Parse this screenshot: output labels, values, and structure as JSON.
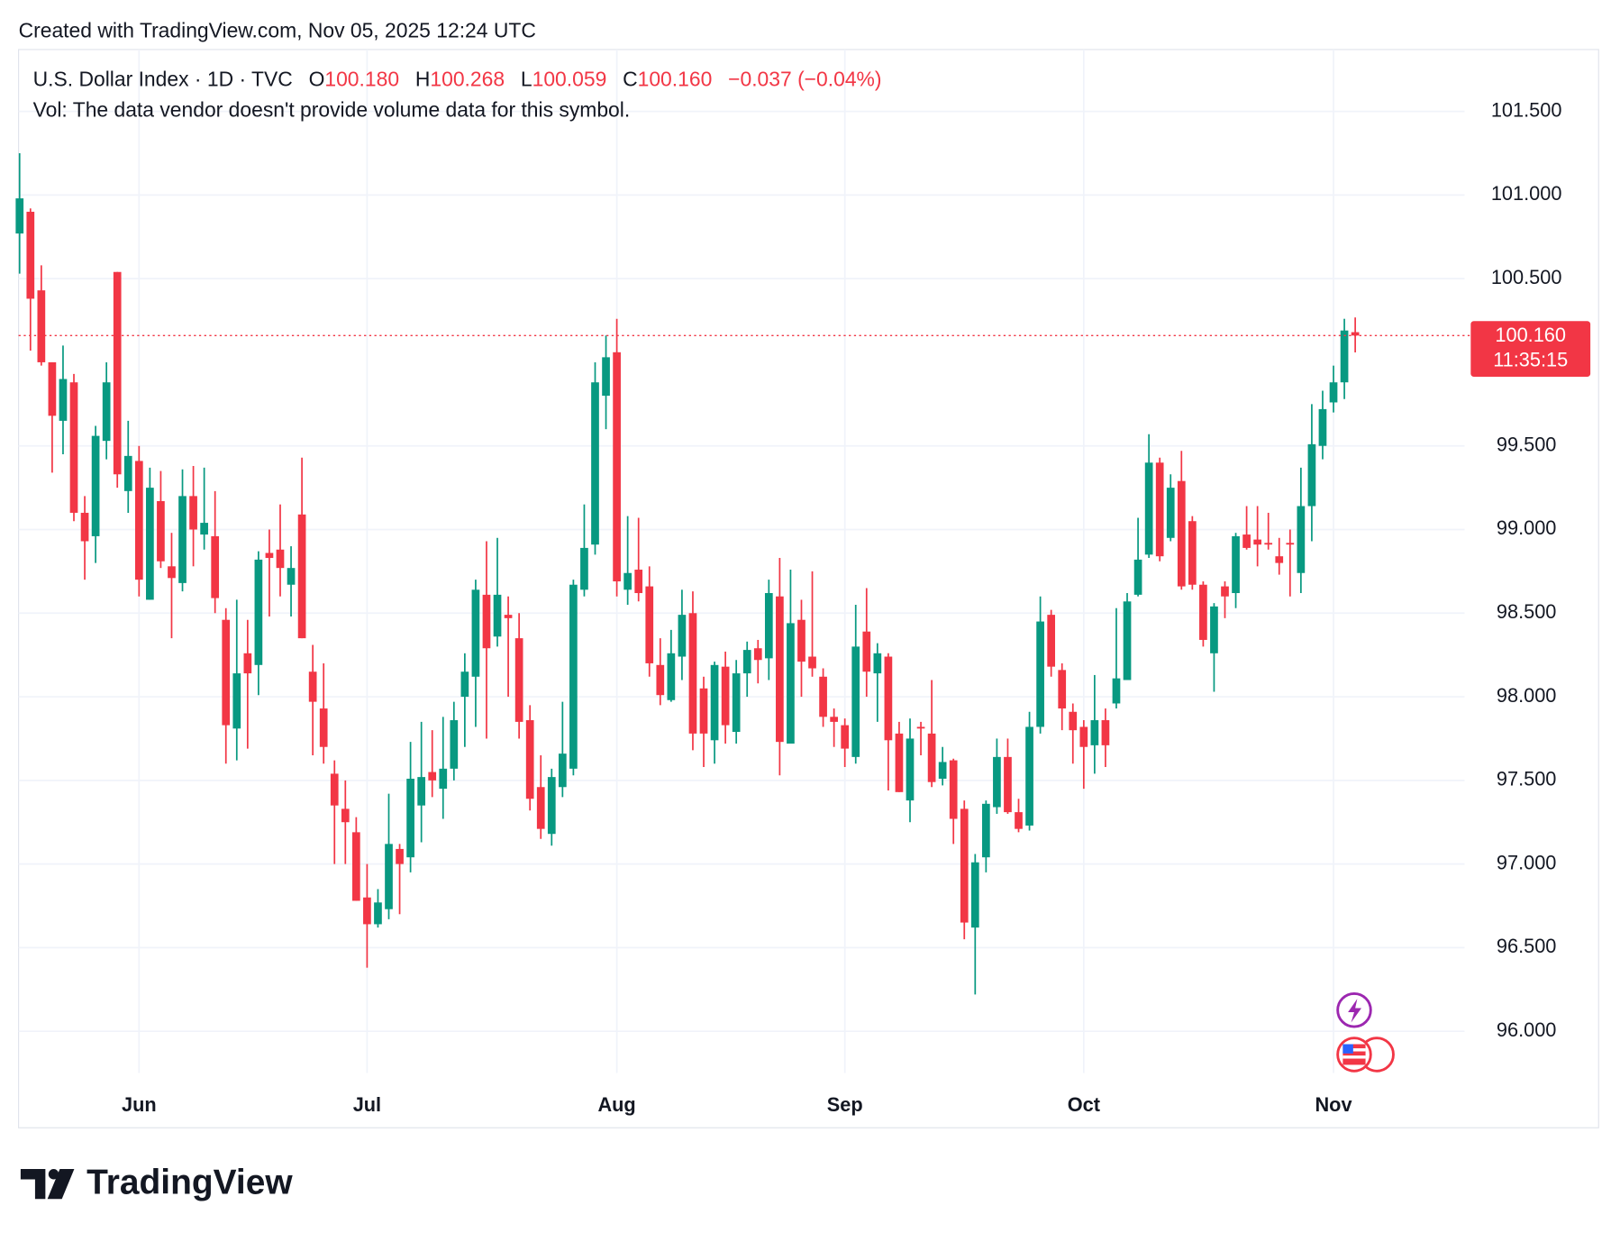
{
  "header": {
    "credit": "Created with TradingView.com, Nov 05, 2025 12:24 UTC",
    "ohlc": [
      {
        "label": "O",
        "value": "100.180"
      },
      {
        "label": "H",
        "value": "100.268"
      },
      {
        "label": "L",
        "value": "100.059"
      },
      {
        "label": "C",
        "value": "100.160"
      }
    ],
    "change": "−0.037 (−0.04%)",
    "volume_note": "Vol: The data vendor doesn't provide volume data for this symbol."
  },
  "price_label": {
    "price": "100.160",
    "countdown": "11:35:15"
  },
  "footer": {
    "brand": "TradingView"
  },
  "chart_data": {
    "type": "candlestick",
    "title": "U.S. Dollar Index · 1D · TVC",
    "up_color": "#089981",
    "down_color": "#f23645",
    "grid": true,
    "ylim": [
      95.75,
      101.87
    ],
    "yticks": [
      {
        "value": 96,
        "label": "96.000"
      },
      {
        "value": 96.5,
        "label": "96.500"
      },
      {
        "value": 97,
        "label": "97.000"
      },
      {
        "value": 97.5,
        "label": "97.500"
      },
      {
        "value": 98,
        "label": "98.000"
      },
      {
        "value": 98.5,
        "label": "98.500"
      },
      {
        "value": 99,
        "label": "99.000"
      },
      {
        "value": 99.5,
        "label": "99.500"
      },
      {
        "value": 100.5,
        "label": "100.500"
      },
      {
        "value": 101,
        "label": "101.000"
      },
      {
        "value": 101.5,
        "label": "101.500"
      }
    ],
    "categories": [
      null,
      null,
      null,
      null,
      null,
      null,
      null,
      null,
      null,
      null,
      null,
      "Jun",
      null,
      null,
      null,
      null,
      null,
      null,
      null,
      null,
      null,
      null,
      null,
      null,
      null,
      null,
      null,
      null,
      null,
      null,
      null,
      null,
      "Jul",
      null,
      null,
      null,
      null,
      null,
      null,
      null,
      null,
      null,
      null,
      null,
      null,
      null,
      null,
      null,
      null,
      null,
      null,
      null,
      null,
      null,
      null,
      "Aug",
      null,
      null,
      null,
      null,
      null,
      null,
      null,
      null,
      null,
      null,
      null,
      null,
      null,
      null,
      null,
      null,
      null,
      null,
      null,
      null,
      "Sep",
      null,
      null,
      null,
      null,
      null,
      null,
      null,
      null,
      null,
      null,
      null,
      null,
      null,
      null,
      null,
      null,
      null,
      null,
      null,
      null,
      null,
      "Oct",
      null,
      null,
      null,
      null,
      null,
      null,
      null,
      null,
      null,
      null,
      null,
      null,
      null,
      null,
      null,
      null,
      null,
      null,
      null,
      null,
      null,
      null,
      "Nov",
      null,
      null
    ],
    "open": [
      100.77,
      100.9,
      100.43,
      100.0,
      99.65,
      99.88,
      99.1,
      98.96,
      99.53,
      100.54,
      99.23,
      99.41,
      98.58,
      99.17,
      98.78,
      98.68,
      99.2,
      98.97,
      98.96,
      98.46,
      97.81,
      98.26,
      98.19,
      98.86,
      98.88,
      98.67,
      99.09,
      98.15,
      97.93,
      97.54,
      97.33,
      97.19,
      96.8,
      96.64,
      96.73,
      97.09,
      97.04,
      97.35,
      97.55,
      97.45,
      97.57,
      98.0,
      98.12,
      98.61,
      98.36,
      98.49,
      98.35,
      97.86,
      97.46,
      97.18,
      97.46,
      97.57,
      98.64,
      98.91,
      99.8,
      100.06,
      98.64,
      98.76,
      98.66,
      98.19,
      97.98,
      98.24,
      98.5,
      98.05,
      97.74,
      98.18,
      97.79,
      98.14,
      98.29,
      98.23,
      98.6,
      97.72,
      98.46,
      98.24,
      98.12,
      97.88,
      97.83,
      97.64,
      98.39,
      98.14,
      98.24,
      97.78,
      97.38,
      97.82,
      97.78,
      97.51,
      97.62,
      97.33,
      96.62,
      97.04,
      97.34,
      97.64,
      97.31,
      97.23,
      97.82,
      98.49,
      98.16,
      97.91,
      97.82,
      97.71,
      97.86,
      97.96,
      98.1,
      98.61,
      98.85,
      99.4,
      98.95,
      99.29,
      99.05,
      98.67,
      98.26,
      98.66,
      98.62,
      98.97,
      98.94,
      98.92,
      98.84,
      98.92,
      98.74,
      99.14,
      99.5,
      99.76,
      99.88,
      100.18
    ],
    "high": [
      101.25,
      100.92,
      100.58,
      100.0,
      100.1,
      99.93,
      99.2,
      99.62,
      100.0,
      100.54,
      99.65,
      99.5,
      99.37,
      99.35,
      98.98,
      99.36,
      99.38,
      99.37,
      99.23,
      98.53,
      98.58,
      98.46,
      98.87,
      99.0,
      99.15,
      98.9,
      99.43,
      98.31,
      98.2,
      97.62,
      97.5,
      97.28,
      97.0,
      96.85,
      97.42,
      97.12,
      97.73,
      97.85,
      97.8,
      97.88,
      97.97,
      98.26,
      98.7,
      98.93,
      98.95,
      98.6,
      98.5,
      97.95,
      97.65,
      97.57,
      97.97,
      98.7,
      99.15,
      100.0,
      100.16,
      100.26,
      99.08,
      99.07,
      98.78,
      98.35,
      98.4,
      98.64,
      98.63,
      98.12,
      98.21,
      98.27,
      98.22,
      98.33,
      98.34,
      98.7,
      98.83,
      98.76,
      98.58,
      98.75,
      98.17,
      97.93,
      97.87,
      98.55,
      98.65,
      98.32,
      98.26,
      97.85,
      97.87,
      97.85,
      98.1,
      97.7,
      97.63,
      97.38,
      97.06,
      97.38,
      97.75,
      97.75,
      97.39,
      97.91,
      98.6,
      98.52,
      98.2,
      97.96,
      97.86,
      98.13,
      97.93,
      98.53,
      98.62,
      99.07,
      99.57,
      99.43,
      99.33,
      99.47,
      99.08,
      98.69,
      98.56,
      98.69,
      98.98,
      99.14,
      99.14,
      99.1,
      98.95,
      99.0,
      99.37,
      99.75,
      99.83,
      99.98,
      100.26,
      100.268
    ],
    "low": [
      100.53,
      100.07,
      99.98,
      99.34,
      99.45,
      99.05,
      98.7,
      98.8,
      99.42,
      99.25,
      99.1,
      98.6,
      98.58,
      98.77,
      98.35,
      98.63,
      98.78,
      98.88,
      98.5,
      97.6,
      97.62,
      97.69,
      98.01,
      98.48,
      98.6,
      98.48,
      98.35,
      97.65,
      97.6,
      97.0,
      97.0,
      96.78,
      96.38,
      96.62,
      96.67,
      96.7,
      96.95,
      97.13,
      97.4,
      97.27,
      97.5,
      97.7,
      97.82,
      97.75,
      98.3,
      98.0,
      97.75,
      97.32,
      97.15,
      97.11,
      97.4,
      97.53,
      98.6,
      98.85,
      99.6,
      98.6,
      98.55,
      98.57,
      98.12,
      97.95,
      97.97,
      98.1,
      97.68,
      97.58,
      97.6,
      97.72,
      97.72,
      98.0,
      98.08,
      98.1,
      97.53,
      97.72,
      98.0,
      98.12,
      97.82,
      97.7,
      97.58,
      97.6,
      98.0,
      97.85,
      97.44,
      97.43,
      97.25,
      97.65,
      97.46,
      97.47,
      97.12,
      96.55,
      96.22,
      96.95,
      97.3,
      97.3,
      97.19,
      97.2,
      97.78,
      98.12,
      97.8,
      97.6,
      97.45,
      97.54,
      97.58,
      97.93,
      98.1,
      98.6,
      98.83,
      98.81,
      98.93,
      98.64,
      98.64,
      98.3,
      98.03,
      98.47,
      98.53,
      98.88,
      98.78,
      98.88,
      98.73,
      98.6,
      98.62,
      98.93,
      99.42,
      99.7,
      99.78,
      100.059
    ],
    "close": [
      100.98,
      100.38,
      100.0,
      99.68,
      99.9,
      99.1,
      98.93,
      99.56,
      99.88,
      99.33,
      99.44,
      98.7,
      99.25,
      98.81,
      98.71,
      99.2,
      99.0,
      99.04,
      98.59,
      97.83,
      98.14,
      98.14,
      98.82,
      98.83,
      98.77,
      98.77,
      98.35,
      97.97,
      97.7,
      97.35,
      97.25,
      96.78,
      96.64,
      96.77,
      97.12,
      97.0,
      97.51,
      97.52,
      97.5,
      97.57,
      97.86,
      98.15,
      98.64,
      98.29,
      98.61,
      98.47,
      97.85,
      97.39,
      97.21,
      97.52,
      97.66,
      98.67,
      98.89,
      99.88,
      100.03,
      98.69,
      98.74,
      98.62,
      98.2,
      98.01,
      98.26,
      98.49,
      97.78,
      97.78,
      98.19,
      97.83,
      98.14,
      98.28,
      98.22,
      98.62,
      97.73,
      98.44,
      98.21,
      98.17,
      97.88,
      97.85,
      97.69,
      98.3,
      98.15,
      98.26,
      97.74,
      97.43,
      97.75,
      97.81,
      97.49,
      97.61,
      97.27,
      96.65,
      97.01,
      97.36,
      97.64,
      97.31,
      97.21,
      97.82,
      98.45,
      98.18,
      97.93,
      97.8,
      97.7,
      97.86,
      97.71,
      98.11,
      98.57,
      98.82,
      99.4,
      98.84,
      99.25,
      98.66,
      98.67,
      98.34,
      98.54,
      98.6,
      98.96,
      98.89,
      98.91,
      98.91,
      98.8,
      98.91,
      99.14,
      99.51,
      99.72,
      99.88,
      100.19,
      100.16
    ]
  }
}
